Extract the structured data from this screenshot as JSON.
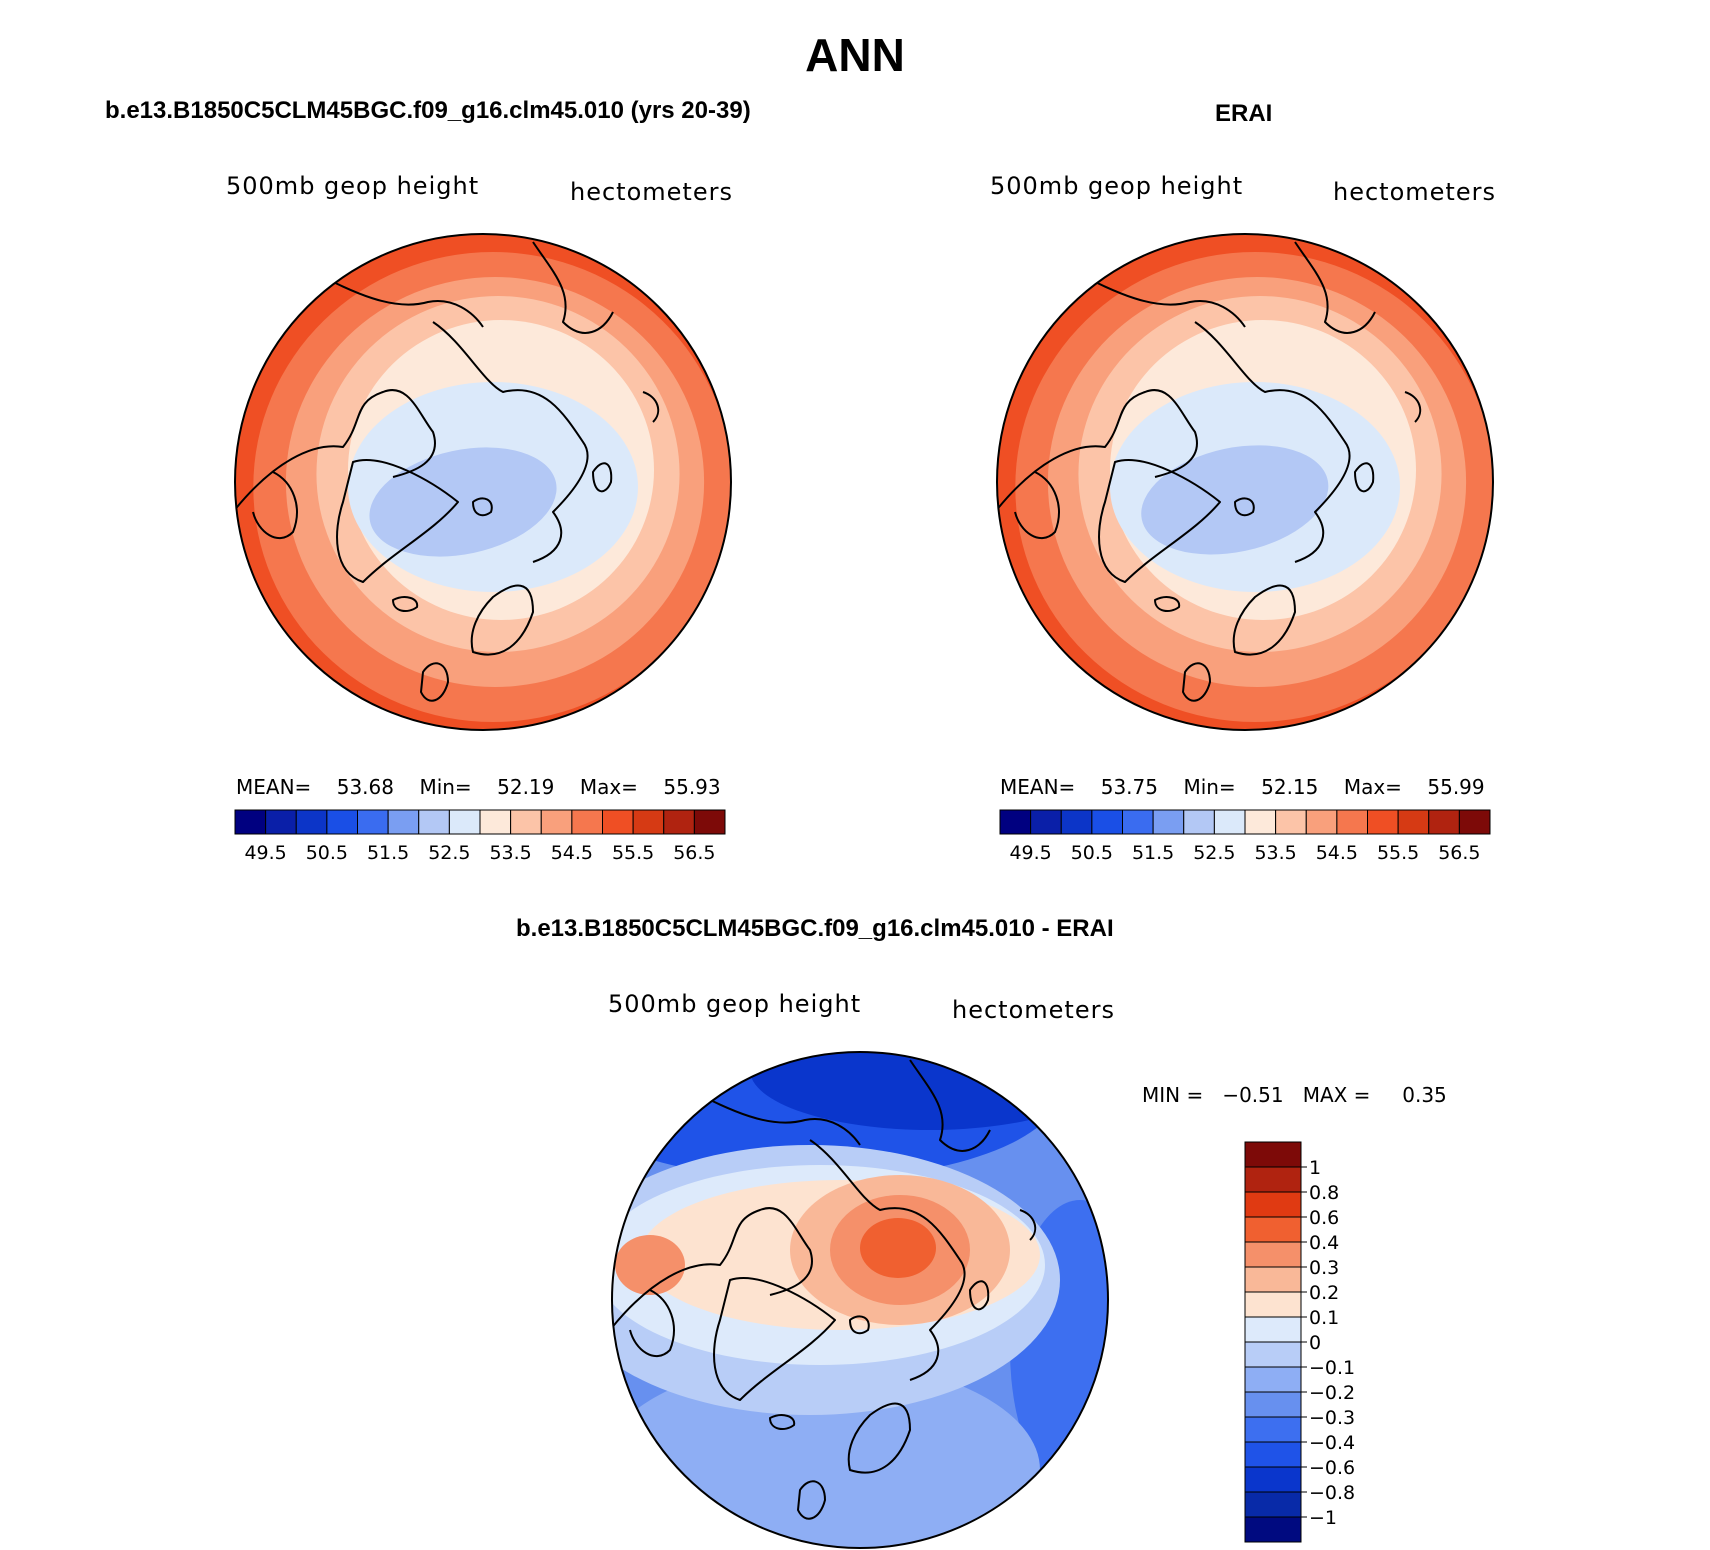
{
  "title": "ANN",
  "panels": [
    {
      "title": "b.e13.B1850C5CLM45BGC.f09_g16.clm45.010 (yrs 20-39)",
      "left_label": "500mb  geop  height",
      "right_label": "hectometers",
      "stats": {
        "mean_label": "MEAN=",
        "mean": "53.68",
        "min_label": "Min=",
        "min": "52.19",
        "max_label": "Max=",
        "max": "55.93"
      },
      "field": {
        "mean": 53.68,
        "min": 52.19,
        "max": 55.93
      }
    },
    {
      "title": "ERAI",
      "left_label": "500mb  geop  height",
      "right_label": "hectometers",
      "stats": {
        "mean_label": "MEAN=",
        "mean": "53.75",
        "min_label": "Min=",
        "min": "52.15",
        "max_label": "Max=",
        "max": "55.99"
      },
      "field": {
        "mean": 53.75,
        "min": 52.15,
        "max": 55.99
      }
    }
  ],
  "abs_colorbar": {
    "colors": [
      "#000080",
      "#0a1fa8",
      "#0c35c8",
      "#1a4fe6",
      "#3a6cf0",
      "#7a9ef2",
      "#b3c8f5",
      "#dbe9fa",
      "#fde9da",
      "#fcc4a8",
      "#f9a07c",
      "#f5774e",
      "#ef4f24",
      "#d63a14",
      "#b02310",
      "#7d0a08"
    ],
    "tick_labels": [
      "49.5",
      "50.5",
      "51.5",
      "52.5",
      "53.5",
      "54.5",
      "55.5",
      "56.5"
    ]
  },
  "diff_panel": {
    "title": "b.e13.B1850C5CLM45BGC.f09_g16.clm45.010 - ERAI",
    "left_label": "500mb  geop  height",
    "right_label": "hectometers",
    "stats": {
      "min_label": "MIN =",
      "min": "−0.51",
      "max_label": "MAX =",
      "max": "0.35"
    },
    "field": {
      "min": -0.51,
      "max": 0.35
    }
  },
  "diff_colorbar": {
    "colors_top_to_bottom": [
      "#7d0a08",
      "#b02310",
      "#e03a12",
      "#f06030",
      "#f5906a",
      "#f9b898",
      "#fde3d0",
      "#ddeafb",
      "#b8cdf7",
      "#8eaef4",
      "#6790ef",
      "#3d6ff0",
      "#1f53e8",
      "#0a36cc",
      "#082aa8",
      "#000a80"
    ],
    "tick_labels": [
      "1",
      "0.8",
      "0.6",
      "0.4",
      "0.3",
      "0.2",
      "0.1",
      "0",
      "−0.1",
      "−0.2",
      "−0.3",
      "−0.4",
      "−0.6",
      "−0.8",
      "−1"
    ]
  }
}
